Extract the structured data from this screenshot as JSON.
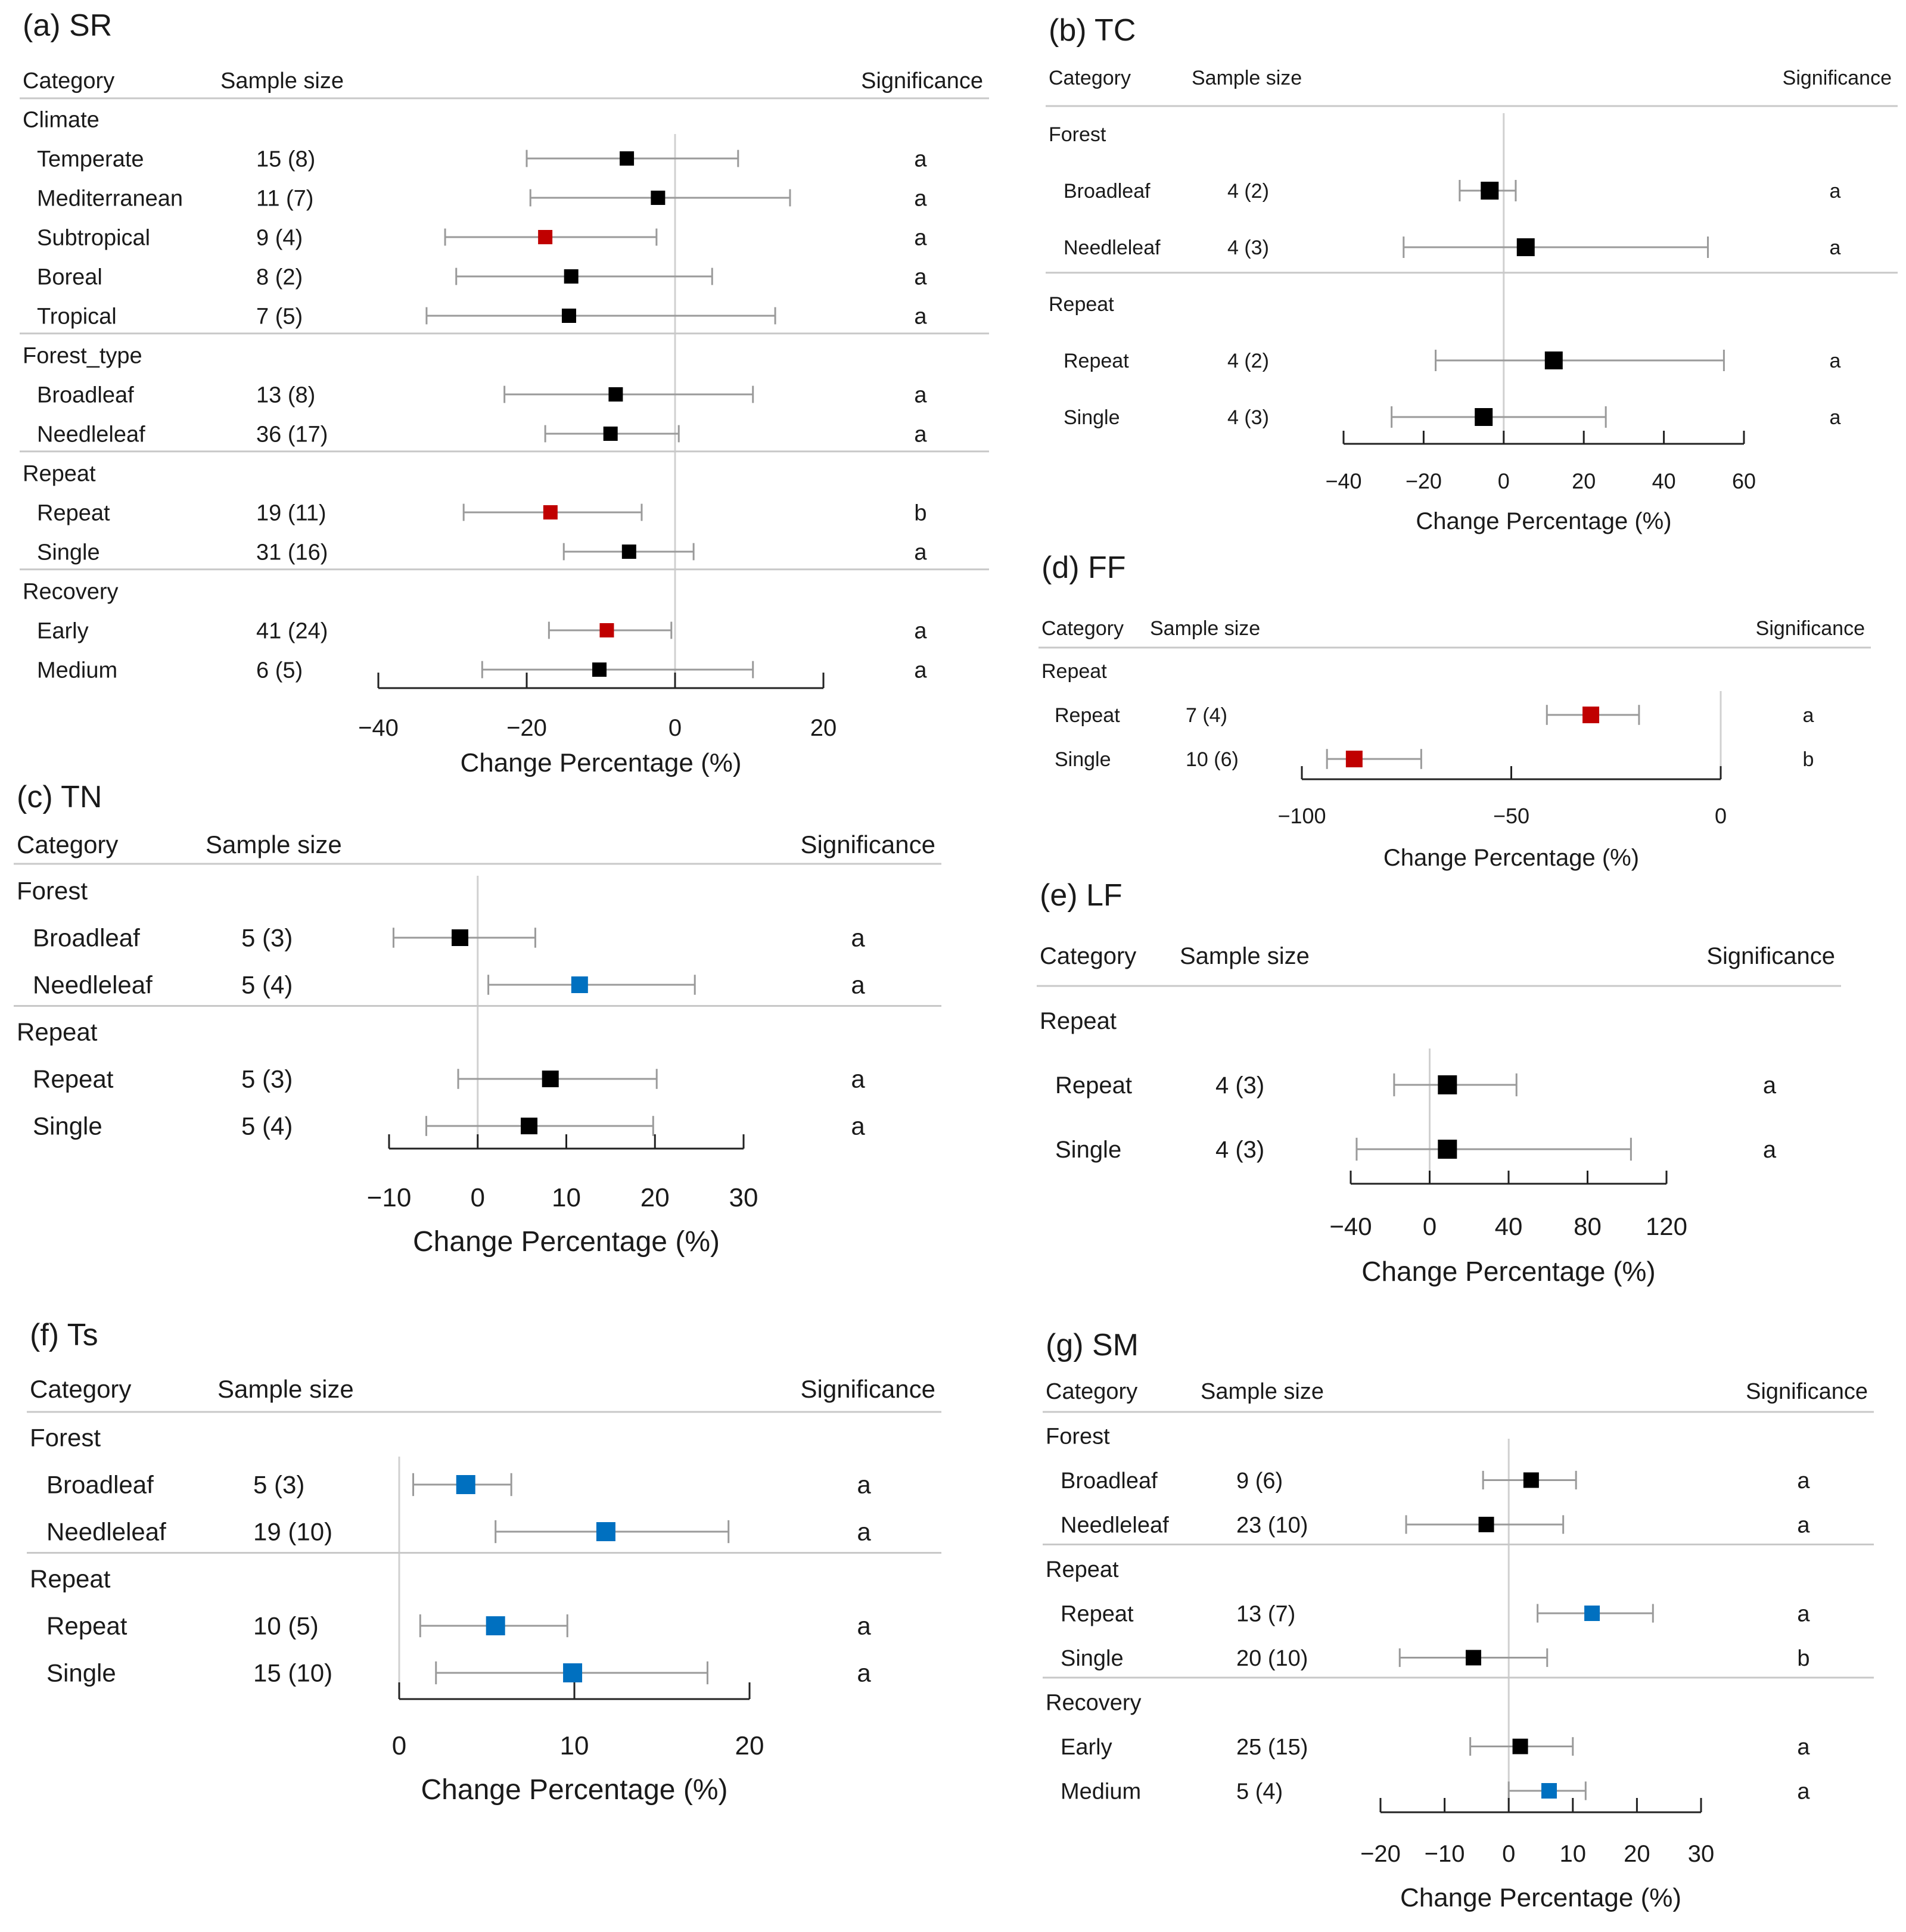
{
  "colors": {
    "neutral": "#000000",
    "negative_significant": "#c00000",
    "positive_significant": "#0070c0",
    "whisker": "#9a9a9a",
    "rule": "#c8c8c8",
    "zero_line": "#d0d0d0",
    "axis": "#222222"
  },
  "chart_data": [
    {
      "id": "a",
      "type": "forest",
      "title": "(a) SR",
      "headers": {
        "category": "Category",
        "sample_size": "Sample size",
        "significance": "Significance"
      },
      "xlabel": "Change Percentage (%)",
      "xlim": [
        -40,
        20
      ],
      "ticks": [
        -40,
        -20,
        0,
        20
      ],
      "groups": [
        {
          "name": "Climate",
          "rows": [
            {
              "label": "Temperate",
              "n": "15 (8)",
              "mean": -6.5,
              "lo": -20,
              "hi": 8.5,
              "sig": "a",
              "color": "neutral"
            },
            {
              "label": "Mediterranean",
              "n": "11 (7)",
              "mean": -2.3,
              "lo": -19.5,
              "hi": 15.5,
              "sig": "a",
              "color": "neutral"
            },
            {
              "label": "Subtropical",
              "n": "9 (4)",
              "mean": -17.5,
              "lo": -31,
              "hi": -2.5,
              "sig": "a",
              "color": "negative_significant"
            },
            {
              "label": "Boreal",
              "n": "8 (2)",
              "mean": -14,
              "lo": -29.5,
              "hi": 5,
              "sig": "a",
              "color": "neutral"
            },
            {
              "label": "Tropical",
              "n": "7 (5)",
              "mean": -14.3,
              "lo": -33.5,
              "hi": 13.5,
              "sig": "a",
              "color": "neutral"
            }
          ]
        },
        {
          "name": "Forest_type",
          "rows": [
            {
              "label": "Broadleaf",
              "n": "13 (8)",
              "mean": -8,
              "lo": -23,
              "hi": 10.5,
              "sig": "a",
              "color": "neutral"
            },
            {
              "label": "Needleleaf",
              "n": "36 (17)",
              "mean": -8.7,
              "lo": -17.5,
              "hi": 0.5,
              "sig": "a",
              "color": "neutral"
            }
          ]
        },
        {
          "name": "Repeat",
          "rows": [
            {
              "label": "Repeat",
              "n": "19 (11)",
              "mean": -16.8,
              "lo": -28.5,
              "hi": -4.5,
              "sig": "b",
              "color": "negative_significant"
            },
            {
              "label": "Single",
              "n": "31 (16)",
              "mean": -6.2,
              "lo": -15,
              "hi": 2.5,
              "sig": "a",
              "color": "neutral"
            }
          ]
        },
        {
          "name": "Recovery",
          "rows": [
            {
              "label": "Early",
              "n": "41 (24)",
              "mean": -9.2,
              "lo": -17,
              "hi": -0.5,
              "sig": "a",
              "color": "negative_significant"
            },
            {
              "label": "Medium",
              "n": "6 (5)",
              "mean": -10.2,
              "lo": -26,
              "hi": 10.5,
              "sig": "a",
              "color": "neutral"
            }
          ]
        }
      ]
    },
    {
      "id": "b",
      "type": "forest",
      "title": "(b) TC",
      "headers": {
        "category": "Category",
        "sample_size": "Sample size",
        "significance": "Significance"
      },
      "xlabel": "Change Percentage (%)",
      "xlim": [
        -40,
        60
      ],
      "ticks": [
        -40,
        -20,
        0,
        20,
        40,
        60
      ],
      "groups": [
        {
          "name": "Forest",
          "rows": [
            {
              "label": "Broadleaf",
              "n": "4 (2)",
              "mean": -3.5,
              "lo": -11,
              "hi": 3,
              "sig": "a",
              "color": "neutral"
            },
            {
              "label": "Needleleaf",
              "n": "4 (3)",
              "mean": 5.5,
              "lo": -25,
              "hi": 51,
              "sig": "a",
              "color": "neutral"
            }
          ]
        },
        {
          "name": "Repeat",
          "rows": [
            {
              "label": "Repeat",
              "n": "4 (2)",
              "mean": 12.5,
              "lo": -17,
              "hi": 55,
              "sig": "a",
              "color": "neutral"
            },
            {
              "label": "Single",
              "n": "4 (3)",
              "mean": -5,
              "lo": -28,
              "hi": 25.5,
              "sig": "a",
              "color": "neutral"
            }
          ]
        }
      ]
    },
    {
      "id": "c",
      "type": "forest",
      "title": "(c) TN",
      "headers": {
        "category": "Category",
        "sample_size": "Sample size",
        "significance": "Significance"
      },
      "xlabel": "Change Percentage (%)",
      "xlim": [
        -10,
        30
      ],
      "ticks": [
        -10,
        0,
        10,
        20,
        30
      ],
      "groups": [
        {
          "name": "Forest",
          "rows": [
            {
              "label": "Broadleaf",
              "n": "5 (3)",
              "mean": -2,
              "lo": -9.5,
              "hi": 6.5,
              "sig": "a",
              "color": "neutral"
            },
            {
              "label": "Needleleaf",
              "n": "5 (4)",
              "mean": 11.5,
              "lo": 1.2,
              "hi": 24.5,
              "sig": "a",
              "color": "positive_significant"
            }
          ]
        },
        {
          "name": "Repeat",
          "rows": [
            {
              "label": "Repeat",
              "n": "5 (3)",
              "mean": 8.2,
              "lo": -2.2,
              "hi": 20.2,
              "sig": "a",
              "color": "neutral"
            },
            {
              "label": "Single",
              "n": "5 (4)",
              "mean": 5.8,
              "lo": -5.8,
              "hi": 19.8,
              "sig": "a",
              "color": "neutral"
            }
          ]
        }
      ]
    },
    {
      "id": "d",
      "type": "forest",
      "title": "(d) FF",
      "headers": {
        "category": "Category",
        "sample_size": "Sample size",
        "significance": "Significance"
      },
      "xlabel": "Change Percentage (%)",
      "xlim": [
        -100,
        0
      ],
      "ticks": [
        -100,
        -50,
        0
      ],
      "groups": [
        {
          "name": "Repeat",
          "rows": [
            {
              "label": "Repeat",
              "n": "7 (4)",
              "mean": -31,
              "lo": -41.5,
              "hi": -19.5,
              "sig": "a",
              "color": "negative_significant"
            },
            {
              "label": "Single",
              "n": "10 (6)",
              "mean": -87.5,
              "lo": -94,
              "hi": -71.5,
              "sig": "b",
              "color": "negative_significant"
            }
          ]
        }
      ]
    },
    {
      "id": "e",
      "type": "forest",
      "title": "(e) LF",
      "headers": {
        "category": "Category",
        "sample_size": "Sample size",
        "significance": "Significance"
      },
      "xlabel": "Change Percentage (%)",
      "xlim": [
        -40,
        120
      ],
      "ticks": [
        -40,
        0,
        40,
        80,
        120
      ],
      "groups": [
        {
          "name": "Repeat",
          "rows": [
            {
              "label": "Repeat",
              "n": "4 (3)",
              "mean": 9,
              "lo": -18,
              "hi": 44,
              "sig": "a",
              "color": "neutral"
            },
            {
              "label": "Single",
              "n": "4 (3)",
              "mean": 9,
              "lo": -37,
              "hi": 102,
              "sig": "a",
              "color": "neutral"
            }
          ]
        }
      ]
    },
    {
      "id": "f",
      "type": "forest",
      "title": "(f) Ts",
      "headers": {
        "category": "Category",
        "sample_size": "Sample size",
        "significance": "Significance"
      },
      "xlabel": "Change Percentage (%)",
      "xlim": [
        0,
        20
      ],
      "ticks": [
        0,
        10,
        20
      ],
      "groups": [
        {
          "name": "Forest",
          "rows": [
            {
              "label": "Broadleaf",
              "n": "5 (3)",
              "mean": 3.8,
              "lo": 0.8,
              "hi": 6.4,
              "sig": "a",
              "color": "positive_significant"
            },
            {
              "label": "Needleleaf",
              "n": "19 (10)",
              "mean": 11.8,
              "lo": 5.5,
              "hi": 18.8,
              "sig": "a",
              "color": "positive_significant"
            }
          ]
        },
        {
          "name": "Repeat",
          "rows": [
            {
              "label": "Repeat",
              "n": "10 (5)",
              "mean": 5.5,
              "lo": 1.2,
              "hi": 9.6,
              "sig": "a",
              "color": "positive_significant"
            },
            {
              "label": "Single",
              "n": "15 (10)",
              "mean": 9.9,
              "lo": 2.1,
              "hi": 17.6,
              "sig": "a",
              "color": "positive_significant"
            }
          ]
        }
      ]
    },
    {
      "id": "g",
      "type": "forest",
      "title": "(g) SM",
      "headers": {
        "category": "Category",
        "sample_size": "Sample size",
        "significance": "Significance"
      },
      "xlabel": "Change Percentage (%)",
      "xlim": [
        -20,
        30
      ],
      "ticks": [
        -20,
        -10,
        0,
        10,
        20,
        30
      ],
      "groups": [
        {
          "name": "Forest",
          "rows": [
            {
              "label": "Broadleaf",
              "n": "9 (6)",
              "mean": 3.5,
              "lo": -4,
              "hi": 10.5,
              "sig": "a",
              "color": "neutral"
            },
            {
              "label": "Needleleaf",
              "n": "23 (10)",
              "mean": -3.5,
              "lo": -16,
              "hi": 8.5,
              "sig": "a",
              "color": "neutral"
            }
          ]
        },
        {
          "name": "Repeat",
          "rows": [
            {
              "label": "Repeat",
              "n": "13 (7)",
              "mean": 13,
              "lo": 4.5,
              "hi": 22.5,
              "sig": "a",
              "color": "positive_significant"
            },
            {
              "label": "Single",
              "n": "20 (10)",
              "mean": -5.5,
              "lo": -17,
              "hi": 6,
              "sig": "b",
              "color": "neutral"
            }
          ]
        },
        {
          "name": "Recovery",
          "rows": [
            {
              "label": "Early",
              "n": "25 (15)",
              "mean": 1.8,
              "lo": -6,
              "hi": 10,
              "sig": "a",
              "color": "neutral"
            },
            {
              "label": "Medium",
              "n": "5 (4)",
              "mean": 6.3,
              "lo": 0,
              "hi": 12,
              "sig": "a",
              "color": "positive_significant"
            }
          ]
        }
      ]
    }
  ]
}
